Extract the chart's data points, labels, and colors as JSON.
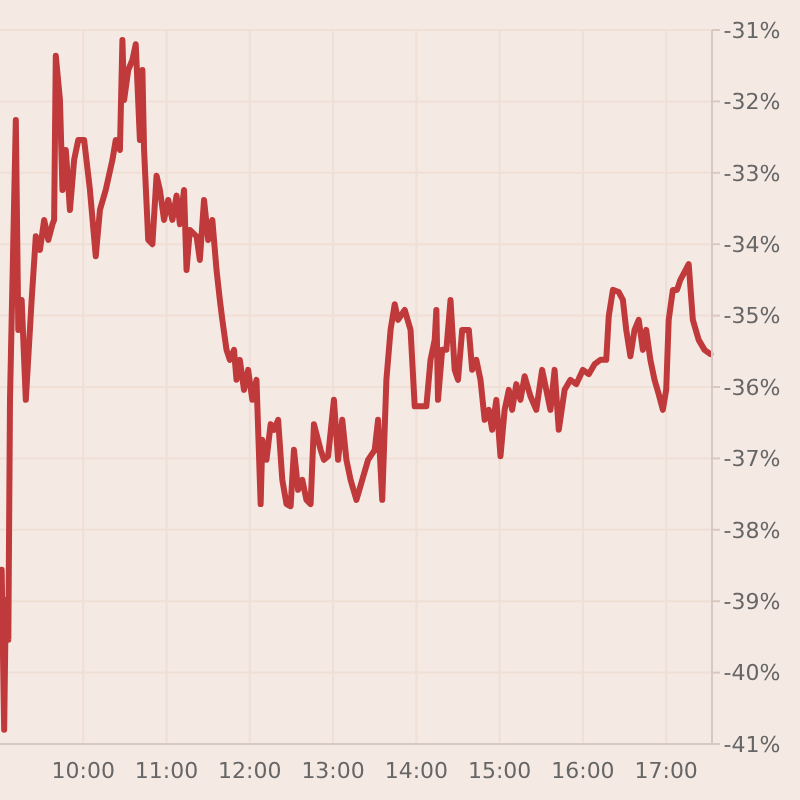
{
  "chart_data": {
    "type": "line",
    "xlim": [
      9.0,
      17.55
    ],
    "ylim": [
      -41,
      -31
    ],
    "xticks": [
      {
        "value": 10,
        "label": "10:00"
      },
      {
        "value": 11,
        "label": "11:00"
      },
      {
        "value": 12,
        "label": "12:00"
      },
      {
        "value": 13,
        "label": "13:00"
      },
      {
        "value": 14,
        "label": "14:00"
      },
      {
        "value": 15,
        "label": "15:00"
      },
      {
        "value": 16,
        "label": "16:00"
      },
      {
        "value": 17,
        "label": "17:00"
      }
    ],
    "yticks": [
      {
        "value": -41,
        "label": "-41%"
      },
      {
        "value": -40,
        "label": "-40%"
      },
      {
        "value": -39,
        "label": "-39%"
      },
      {
        "value": -38,
        "label": "-38%"
      },
      {
        "value": -37,
        "label": "-37%"
      },
      {
        "value": -36,
        "label": "-36%"
      },
      {
        "value": -35,
        "label": "-35%"
      },
      {
        "value": -34,
        "label": "-34%"
      },
      {
        "value": -33,
        "label": "-33%"
      },
      {
        "value": -32,
        "label": "-32%"
      },
      {
        "value": -31,
        "label": "-31%"
      }
    ],
    "grid": true,
    "marker": "none",
    "line_style": "solid",
    "series": [
      {
        "color": "#c0393b",
        "x": [
          9.02,
          9.05,
          9.07,
          9.1,
          9.12,
          9.19,
          9.22,
          9.26,
          9.31,
          9.38,
          9.43,
          9.48,
          9.53,
          9.58,
          9.63,
          9.65,
          9.67,
          9.72,
          9.75,
          9.79,
          9.84,
          9.89,
          9.94,
          10.01,
          10.08,
          10.15,
          10.2,
          10.27,
          10.35,
          10.39,
          10.44,
          10.47,
          10.49,
          10.54,
          10.59,
          10.63,
          10.68,
          10.71,
          10.73,
          10.78,
          10.83,
          10.88,
          10.92,
          10.97,
          11.02,
          11.07,
          11.12,
          11.16,
          11.21,
          11.24,
          11.28,
          11.36,
          11.4,
          11.45,
          11.5,
          11.55,
          11.6,
          11.64,
          11.67,
          11.72,
          11.76,
          11.81,
          11.84,
          11.88,
          11.93,
          11.98,
          12.03,
          12.08,
          12.13,
          12.15,
          12.2,
          12.25,
          12.29,
          12.34,
          12.39,
          12.44,
          12.49,
          12.53,
          12.58,
          12.63,
          12.68,
          12.73,
          12.77,
          12.85,
          12.89,
          12.94,
          13.01,
          13.06,
          13.11,
          13.16,
          13.21,
          13.28,
          13.35,
          13.42,
          13.5,
          13.54,
          13.59,
          13.64,
          13.69,
          13.74,
          13.78,
          13.86,
          13.93,
          13.98,
          14.05,
          14.12,
          14.17,
          14.22,
          14.24,
          14.26,
          14.31,
          14.36,
          14.41,
          14.46,
          14.5,
          14.55,
          14.63,
          14.67,
          14.72,
          14.77,
          14.82,
          14.87,
          14.91,
          14.96,
          15.01,
          15.06,
          15.11,
          15.15,
          15.2,
          15.25,
          15.3,
          15.37,
          15.44,
          15.51,
          15.56,
          15.61,
          15.66,
          15.71,
          15.78,
          15.85,
          15.92,
          16.0,
          16.07,
          16.14,
          16.21,
          16.28,
          16.31,
          16.36,
          16.43,
          16.48,
          16.52,
          16.57,
          16.62,
          16.67,
          16.72,
          16.76,
          16.81,
          16.86,
          16.91,
          16.96,
          17.0,
          17.03,
          17.08,
          17.13,
          17.17,
          17.27,
          17.32,
          17.39,
          17.46,
          17.53
        ],
        "values": [
          -38.56,
          -40.8,
          -38.98,
          -39.54,
          -36.18,
          -32.26,
          -35.2,
          -34.78,
          -36.18,
          -34.78,
          -33.89,
          -34.08,
          -33.66,
          -33.94,
          -33.72,
          -33.66,
          -31.36,
          -31.98,
          -33.24,
          -32.68,
          -33.52,
          -32.82,
          -32.54,
          -32.54,
          -33.24,
          -34.17,
          -33.52,
          -33.24,
          -32.82,
          -32.54,
          -32.68,
          -31.14,
          -31.98,
          -31.56,
          -31.42,
          -31.2,
          -32.54,
          -31.56,
          -32.68,
          -33.94,
          -34.0,
          -33.04,
          -33.24,
          -33.66,
          -33.38,
          -33.66,
          -33.32,
          -33.72,
          -33.24,
          -34.36,
          -33.8,
          -33.89,
          -34.22,
          -33.38,
          -33.94,
          -33.66,
          -34.36,
          -34.78,
          -35.06,
          -35.48,
          -35.62,
          -35.48,
          -35.9,
          -35.62,
          -36.04,
          -35.76,
          -36.18,
          -35.9,
          -37.64,
          -36.74,
          -37.02,
          -36.52,
          -36.6,
          -36.46,
          -37.3,
          -37.64,
          -37.67,
          -36.88,
          -37.44,
          -37.3,
          -37.58,
          -37.64,
          -36.52,
          -36.88,
          -37.02,
          -36.97,
          -36.18,
          -37.02,
          -36.46,
          -37.02,
          -37.3,
          -37.58,
          -37.3,
          -37.02,
          -36.88,
          -36.46,
          -37.58,
          -35.9,
          -35.2,
          -34.84,
          -35.06,
          -34.92,
          -35.2,
          -36.27,
          -36.27,
          -36.27,
          -35.62,
          -35.34,
          -34.92,
          -36.18,
          -35.48,
          -35.48,
          -34.78,
          -35.76,
          -35.9,
          -35.2,
          -35.2,
          -35.76,
          -35.62,
          -35.9,
          -36.46,
          -36.32,
          -36.6,
          -36.18,
          -36.97,
          -36.32,
          -36.04,
          -36.32,
          -35.96,
          -36.18,
          -35.85,
          -36.13,
          -36.32,
          -35.76,
          -36.04,
          -36.32,
          -35.76,
          -36.6,
          -36.04,
          -35.9,
          -35.96,
          -35.76,
          -35.82,
          -35.68,
          -35.62,
          -35.62,
          -35.01,
          -34.64,
          -34.67,
          -34.78,
          -35.2,
          -35.57,
          -35.2,
          -35.06,
          -35.48,
          -35.2,
          -35.62,
          -35.9,
          -36.1,
          -36.32,
          -36.04,
          -35.06,
          -34.64,
          -34.64,
          -34.5,
          -34.28,
          -35.06,
          -35.34,
          -35.48,
          -35.54
        ]
      }
    ]
  }
}
